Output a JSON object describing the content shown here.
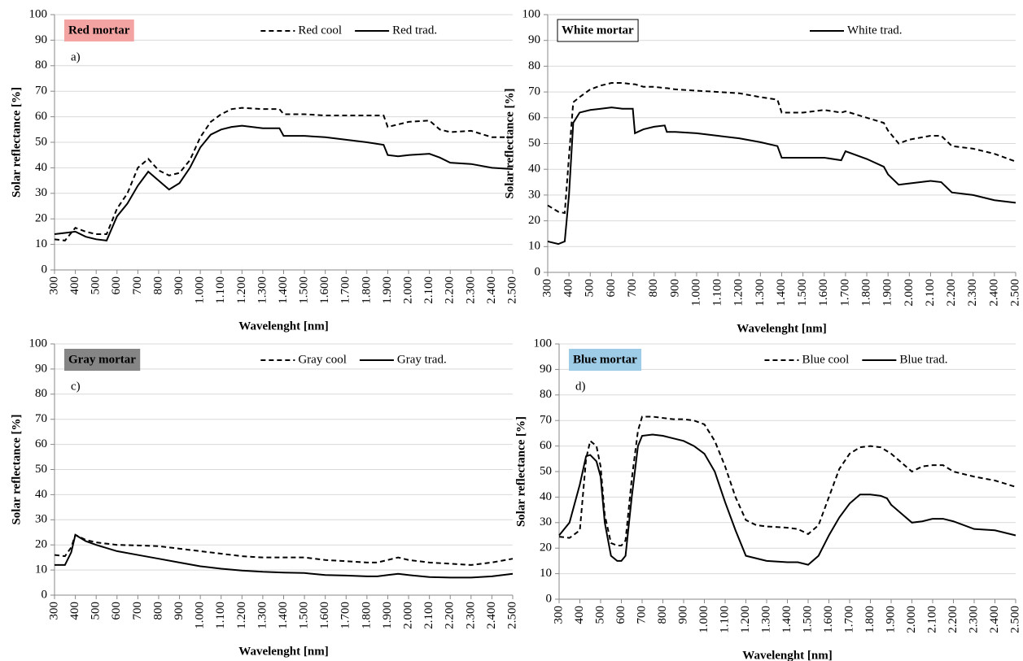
{
  "chart_data": [
    {
      "type": "line",
      "title": "Red mortar",
      "title_color": "#f4a3a3",
      "panel_label": "a)",
      "x_label": "Wavelenght [nm]",
      "y_label": "Solar reflectance [%]",
      "legend": "top",
      "grid": true,
      "xlim": [
        300,
        2500
      ],
      "ylim": [
        0,
        100
      ],
      "xticks": [
        300,
        400,
        500,
        600,
        700,
        800,
        900,
        {
          "value": 1000,
          "label": "1.000"
        },
        {
          "value": 1100,
          "label": "1.100"
        },
        {
          "value": 1200,
          "label": "1.200"
        },
        {
          "value": 1300,
          "label": "1.300"
        },
        {
          "value": 1400,
          "label": "1.400"
        },
        {
          "value": 1500,
          "label": "1.500"
        },
        {
          "value": 1600,
          "label": "1.600"
        },
        {
          "value": 1700,
          "label": "1.700"
        },
        {
          "value": 1800,
          "label": "1.800"
        },
        {
          "value": 1900,
          "label": "1.900"
        },
        {
          "value": 2000,
          "label": "2.000"
        },
        {
          "value": 2100,
          "label": "2.100"
        },
        {
          "value": 2200,
          "label": "2.200"
        },
        {
          "value": 2300,
          "label": "2.300"
        },
        {
          "value": 2400,
          "label": "2.400"
        },
        {
          "value": 2500,
          "label": "2.500"
        }
      ],
      "yticks": [
        0,
        10,
        20,
        30,
        40,
        50,
        60,
        70,
        80,
        90,
        100
      ],
      "x": [
        300,
        350,
        400,
        450,
        500,
        550,
        600,
        650,
        700,
        750,
        800,
        850,
        900,
        950,
        1000,
        1050,
        1100,
        1150,
        1200,
        1300,
        1380,
        1400,
        1500,
        1600,
        1700,
        1800,
        1880,
        1900,
        1950,
        2000,
        2100,
        2150,
        2200,
        2300,
        2400,
        2500
      ],
      "series": [
        {
          "name": "Red cool",
          "color": "#000000",
          "dashed": true,
          "values": [
            12,
            11.5,
            16.5,
            15,
            14,
            14,
            24,
            30,
            40,
            43.5,
            39,
            37,
            38,
            43,
            52,
            58,
            61,
            63,
            63.5,
            63,
            63,
            61,
            61,
            60.5,
            60.5,
            60.5,
            60.5,
            56,
            57,
            58,
            58.5,
            55,
            54,
            54.5,
            52,
            52
          ]
        },
        {
          "name": "Red trad.",
          "color": "#000000",
          "dashed": false,
          "values": [
            14,
            14.5,
            15,
            13,
            12,
            11.5,
            21,
            26,
            33,
            38.5,
            35,
            31.5,
            34,
            40,
            48,
            53,
            55,
            56,
            56.5,
            55.5,
            55.5,
            52.5,
            52.5,
            52,
            51,
            50,
            49,
            45,
            44.5,
            45,
            45.5,
            44,
            42,
            41.5,
            40,
            39.5
          ]
        }
      ]
    },
    {
      "type": "line",
      "title": "White mortar",
      "title_color": "#ffffff",
      "x_label": "Wavelenght [nm]",
      "y_label": "Solar reflectance [%]",
      "legend": "top",
      "grid": true,
      "xlim": [
        300,
        2500
      ],
      "ylim": [
        0,
        100
      ],
      "xticks": [
        300,
        400,
        500,
        600,
        700,
        800,
        900,
        {
          "value": 1000,
          "label": "1.000"
        },
        {
          "value": 1100,
          "label": "1.100"
        },
        {
          "value": 1200,
          "label": "1.200"
        },
        {
          "value": 1300,
          "label": "1.300"
        },
        {
          "value": 1400,
          "label": "1.400"
        },
        {
          "value": 1500,
          "label": "1.500"
        },
        {
          "value": 1600,
          "label": "1.600"
        },
        {
          "value": 1700,
          "label": "1.700"
        },
        {
          "value": 1800,
          "label": "1.800"
        },
        {
          "value": 1900,
          "label": "1.900"
        },
        {
          "value": 2000,
          "label": "2.000"
        },
        {
          "value": 2100,
          "label": "2.100"
        },
        {
          "value": 2200,
          "label": "2.200"
        },
        {
          "value": 2300,
          "label": "2.300"
        },
        {
          "value": 2400,
          "label": "2.400"
        },
        {
          "value": 2500,
          "label": "2.500"
        }
      ],
      "yticks": [
        0,
        10,
        20,
        30,
        40,
        50,
        60,
        70,
        80,
        90,
        100
      ],
      "x": [
        300,
        350,
        380,
        400,
        420,
        450,
        500,
        550,
        600,
        650,
        700,
        710,
        750,
        800,
        850,
        860,
        900,
        1000,
        1100,
        1200,
        1300,
        1380,
        1400,
        1500,
        1600,
        1680,
        1700,
        1800,
        1880,
        1900,
        1950,
        2000,
        2100,
        2150,
        2200,
        2300,
        2400,
        2500
      ],
      "series": [
        {
          "color": "#000000",
          "dashed": true,
          "values": [
            26,
            23.5,
            23,
            45,
            66,
            68,
            71,
            72.5,
            73.5,
            73.5,
            73,
            73,
            72,
            72,
            71.5,
            71.5,
            71,
            70.5,
            70,
            69.5,
            68,
            67,
            62,
            62,
            63,
            62,
            62.5,
            60,
            58,
            55,
            50,
            51.5,
            53,
            53,
            49,
            48,
            46,
            43
          ]
        },
        {
          "name": "White trad.",
          "color": "#000000",
          "dashed": false,
          "values": [
            12,
            11,
            12,
            30,
            58,
            62,
            63,
            63.5,
            64,
            63.5,
            63.5,
            54,
            55.5,
            56.5,
            57,
            54.5,
            54.5,
            54,
            53,
            52,
            50.5,
            49,
            44.5,
            44.5,
            44.5,
            43.5,
            47,
            44,
            41,
            38,
            34,
            34.5,
            35.5,
            35,
            31,
            30,
            28,
            27
          ]
        }
      ]
    },
    {
      "type": "line",
      "title": "Gray mortar",
      "title_color": "#858585",
      "panel_label": "c)",
      "x_label": "Wavelenght [nm]",
      "y_label": "Solar reflectance [%]",
      "legend": "top",
      "grid": true,
      "xlim": [
        300,
        2500
      ],
      "ylim": [
        0,
        100
      ],
      "xticks": [
        300,
        400,
        500,
        600,
        700,
        800,
        900,
        {
          "value": 1000,
          "label": "1.000"
        },
        {
          "value": 1100,
          "label": "1.100"
        },
        {
          "value": 1200,
          "label": "1.200"
        },
        {
          "value": 1300,
          "label": "1.300"
        },
        {
          "value": 1400,
          "label": "1.400"
        },
        {
          "value": 1500,
          "label": "1.500"
        },
        {
          "value": 1600,
          "label": "1.600"
        },
        {
          "value": 1700,
          "label": "1.700"
        },
        {
          "value": 1800,
          "label": "1.800"
        },
        {
          "value": 1900,
          "label": "1.900"
        },
        {
          "value": 2000,
          "label": "2.000"
        },
        {
          "value": 2100,
          "label": "2.100"
        },
        {
          "value": 2200,
          "label": "2.200"
        },
        {
          "value": 2300,
          "label": "2.300"
        },
        {
          "value": 2400,
          "label": "2.400"
        },
        {
          "value": 2500,
          "label": "2.500"
        }
      ],
      "yticks": [
        0,
        10,
        20,
        30,
        40,
        50,
        60,
        70,
        80,
        90,
        100
      ],
      "x": [
        300,
        350,
        380,
        400,
        450,
        500,
        600,
        700,
        800,
        900,
        1000,
        1100,
        1200,
        1300,
        1400,
        1500,
        1600,
        1700,
        1800,
        1850,
        1900,
        1950,
        2000,
        2100,
        2200,
        2300,
        2400,
        2500
      ],
      "series": [
        {
          "name": "Gray cool",
          "color": "#000000",
          "dashed": true,
          "values": [
            16,
            15.5,
            19,
            24,
            22,
            21,
            20,
            19.8,
            19.5,
            18.5,
            17.5,
            16.5,
            15.5,
            15,
            15,
            15,
            14,
            13.5,
            13,
            13,
            14,
            15,
            14,
            13,
            12.5,
            12,
            13,
            14.5
          ]
        },
        {
          "name": "Gray trad.",
          "color": "#000000",
          "dashed": false,
          "values": [
            12,
            12,
            17,
            24,
            21.5,
            20,
            17.5,
            16,
            14.5,
            13,
            11.5,
            10.5,
            9.8,
            9.3,
            9,
            8.8,
            8,
            7.8,
            7.5,
            7.5,
            8,
            8.5,
            8,
            7.2,
            7,
            7,
            7.5,
            8.5
          ]
        }
      ]
    },
    {
      "type": "line",
      "title": "Blue mortar",
      "title_color": "#9ecbe6",
      "panel_label": "d)",
      "x_label": "Wavelenght [nm]",
      "y_label": "Solar reflectance [%]",
      "legend": "top",
      "grid": true,
      "xlim": [
        300,
        2500
      ],
      "ylim": [
        0,
        100
      ],
      "xticks": [
        300,
        400,
        500,
        600,
        700,
        800,
        900,
        {
          "value": 1000,
          "label": "1.000"
        },
        {
          "value": 1100,
          "label": "1.100"
        },
        {
          "value": 1200,
          "label": "1.200"
        },
        {
          "value": 1300,
          "label": "1.300"
        },
        {
          "value": 1400,
          "label": "1.400"
        },
        {
          "value": 1500,
          "label": "1.500"
        },
        {
          "value": 1600,
          "label": "1.600"
        },
        {
          "value": 1700,
          "label": "1.700"
        },
        {
          "value": 1800,
          "label": "1.800"
        },
        {
          "value": 1900,
          "label": "1.900"
        },
        {
          "value": 2000,
          "label": "2.000"
        },
        {
          "value": 2100,
          "label": "2.100"
        },
        {
          "value": 2200,
          "label": "2.200"
        },
        {
          "value": 2300,
          "label": "2.300"
        },
        {
          "value": 2400,
          "label": "2.400"
        },
        {
          "value": 2500,
          "label": "2.500"
        }
      ],
      "yticks": [
        0,
        10,
        20,
        30,
        40,
        50,
        60,
        70,
        80,
        90,
        100
      ],
      "x": [
        300,
        350,
        400,
        430,
        450,
        480,
        500,
        520,
        550,
        580,
        600,
        620,
        650,
        680,
        700,
        750,
        800,
        850,
        900,
        950,
        1000,
        1050,
        1100,
        1150,
        1200,
        1250,
        1300,
        1400,
        1450,
        1500,
        1550,
        1600,
        1650,
        1700,
        1750,
        1800,
        1850,
        1880,
        1900,
        2000,
        2050,
        2100,
        2150,
        2200,
        2300,
        2400,
        2500
      ],
      "series": [
        {
          "name": "Blue cool",
          "color": "#000000",
          "dashed": true,
          "values": [
            24.5,
            24,
            27,
            55,
            62,
            60,
            52,
            33,
            22,
            21,
            21,
            23,
            47,
            66,
            71.5,
            71.5,
            71,
            70.5,
            70.5,
            70,
            68.5,
            62,
            52,
            40,
            31,
            29,
            28.5,
            28,
            27.5,
            25.5,
            29,
            40,
            51,
            57,
            59.5,
            60,
            59.5,
            58,
            57,
            50,
            52,
            52.5,
            52.5,
            50,
            48,
            46.5,
            44
          ]
        },
        {
          "name": "Blue trad.",
          "color": "#000000",
          "dashed": false,
          "values": [
            25,
            30,
            45,
            56,
            56.5,
            54,
            48,
            30,
            17,
            15,
            15,
            17,
            40,
            60,
            64,
            64.5,
            64,
            63,
            62,
            60,
            57,
            50,
            38,
            27,
            17,
            16,
            15,
            14.5,
            14.5,
            13.5,
            17,
            25,
            32,
            37.5,
            41,
            41,
            40.5,
            39.5,
            37,
            30,
            30.5,
            31.5,
            31.5,
            30.5,
            27.5,
            27,
            25
          ]
        }
      ]
    }
  ]
}
